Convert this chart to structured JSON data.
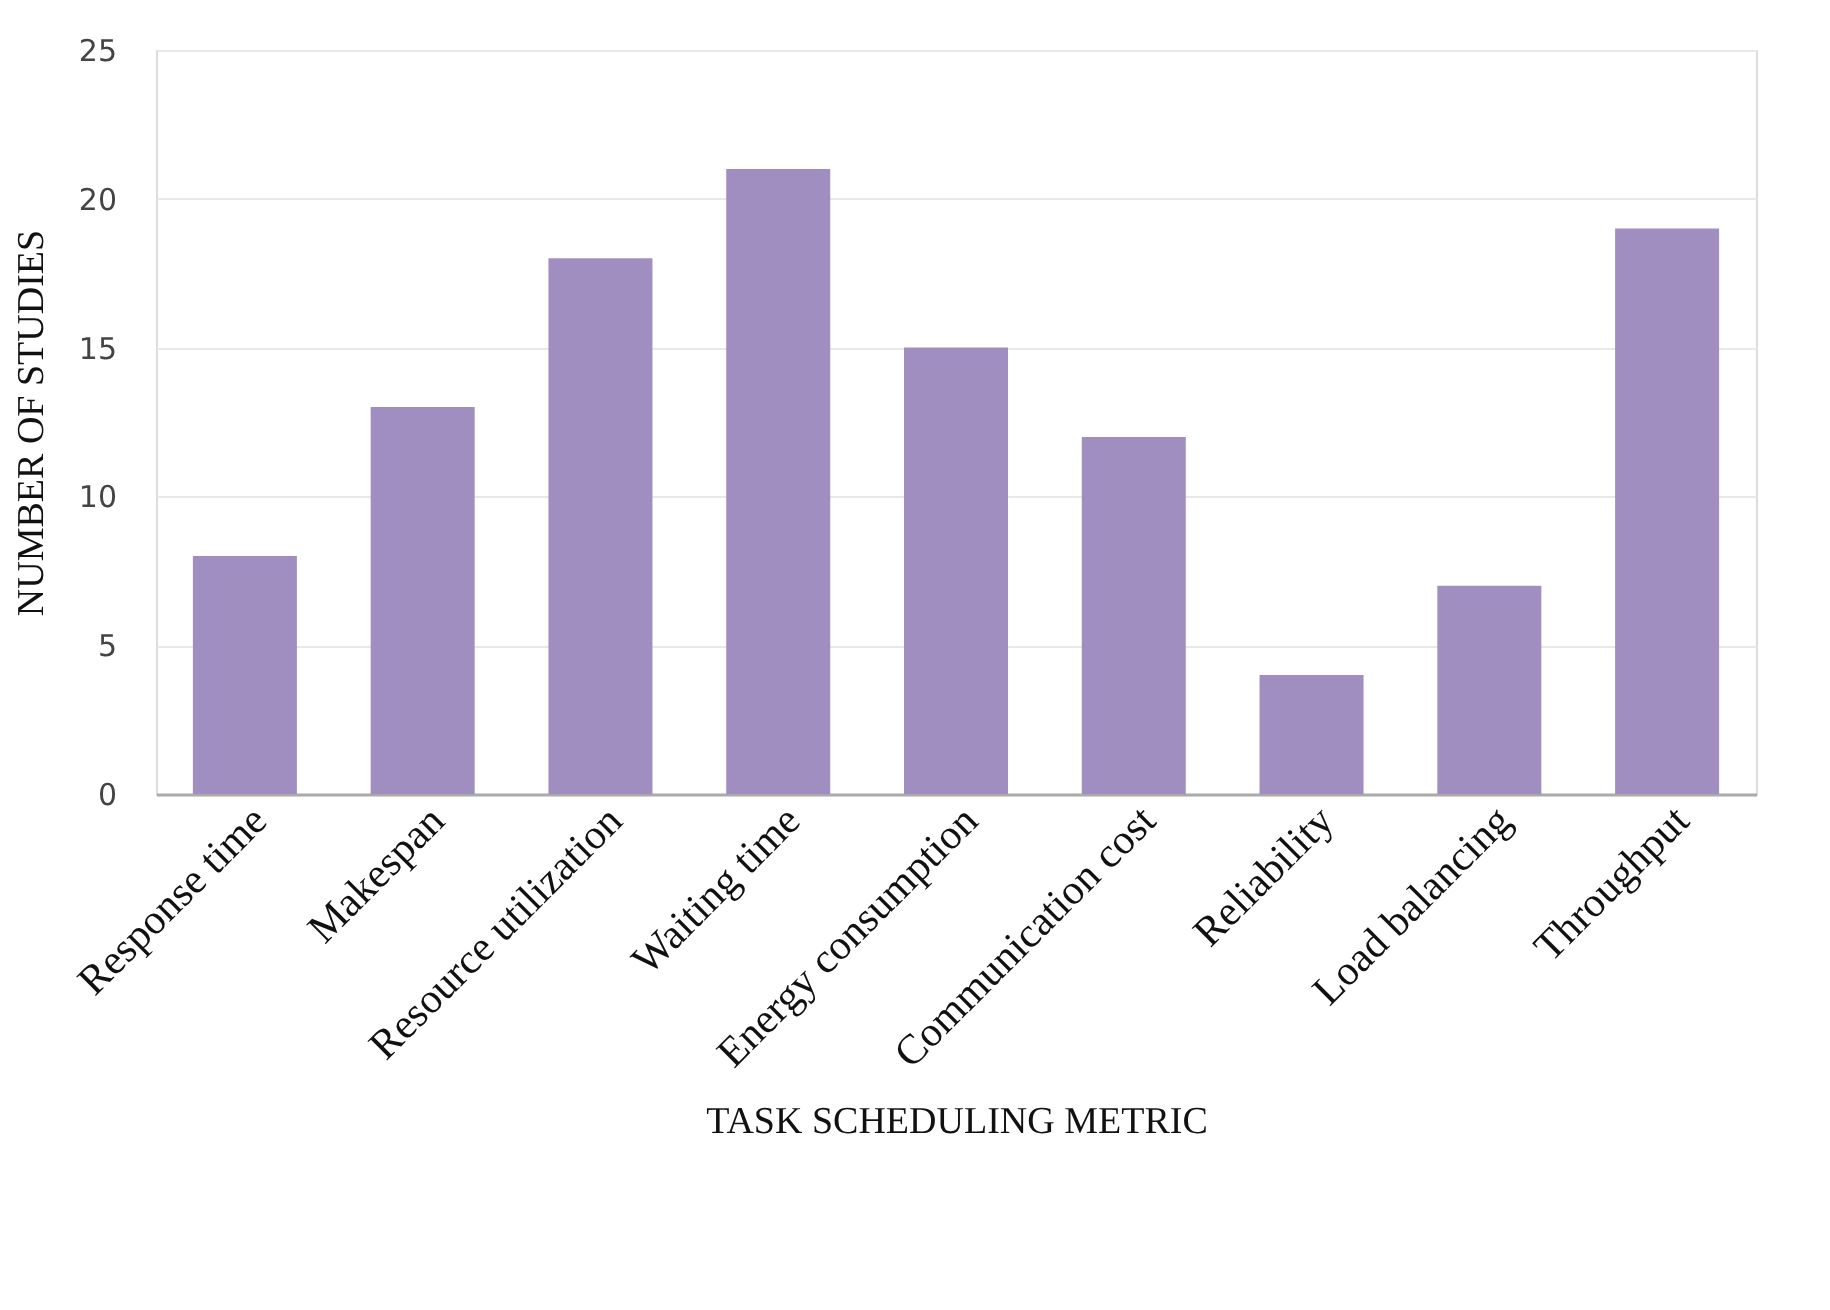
{
  "chart_data": {
    "type": "bar",
    "xlabel": "TASK SCHEDULING METRIC",
    "ylabel": "NUMBER OF STUDIES",
    "categories": [
      "Response time",
      "Makespan",
      "Resource utilization",
      "Waiting time",
      "Energy consumption",
      "Communication cost",
      "Reliability",
      "Load balancing",
      "Throughput"
    ],
    "values": [
      8,
      13,
      18,
      21,
      15,
      12,
      4,
      7,
      19
    ],
    "color": "#a08ec0",
    "ylim": [
      0,
      25
    ],
    "yticks": [
      0,
      5,
      10,
      15,
      20,
      25
    ],
    "grid": "y",
    "legend": false
  }
}
